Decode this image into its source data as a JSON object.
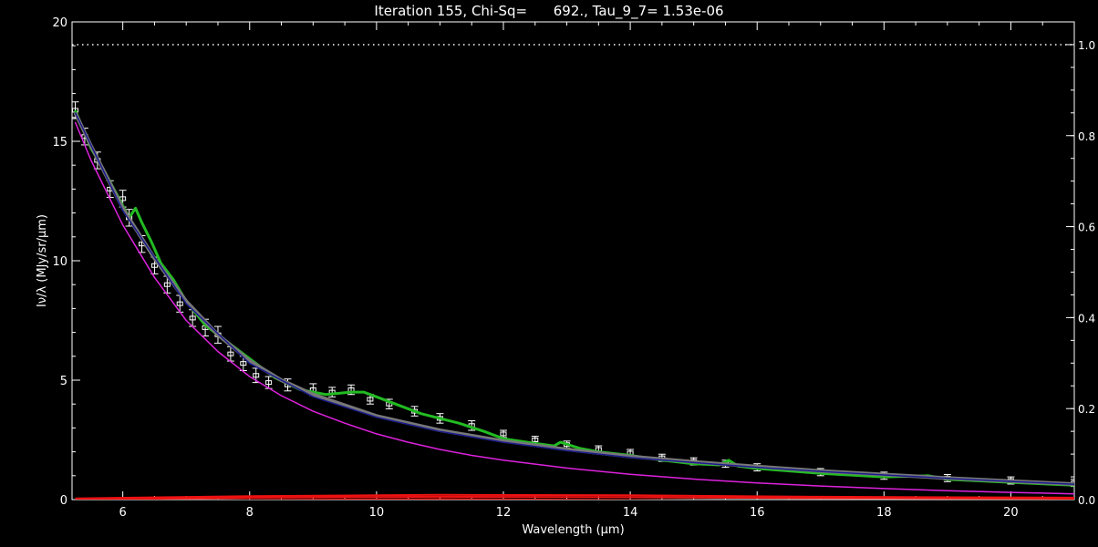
{
  "chart_data": {
    "type": "line",
    "title": "Iteration 155, Chi-Sq=      692., Tau_9_7= 1.53e-06",
    "xlabel": "Wavelength (μm)",
    "ylabel": "Iν/λ (MJy/sr/μm)",
    "xlim": [
      5.2,
      21.0
    ],
    "ylim": [
      0,
      20
    ],
    "y2lim": [
      0,
      1.05
    ],
    "xticks": [
      "6",
      "8",
      "10",
      "12",
      "14",
      "16",
      "18",
      "20"
    ],
    "yticks": [
      "0",
      "5",
      "10",
      "15",
      "20"
    ],
    "y2ticks": [
      "0.0",
      "0.2",
      "0.4",
      "0.6",
      "0.8",
      "1.0"
    ],
    "grid": false,
    "legend": "none",
    "series": [
      {
        "role": "observed",
        "color": "#ffffff",
        "style": "points-with-errorbars",
        "x": [
          5.25,
          5.4,
          5.6,
          5.8,
          6.0,
          6.1,
          6.3,
          6.5,
          6.7,
          6.9,
          7.1,
          7.3,
          7.5,
          7.7,
          7.9,
          8.1,
          8.3,
          8.6,
          9.0,
          9.3,
          9.6,
          9.9,
          10.2,
          10.6,
          11.0,
          11.5,
          12.0,
          12.5,
          13.0,
          13.5,
          14.0,
          14.5,
          15.0,
          15.5,
          16.0,
          17.0,
          18.0,
          19.0,
          20.0,
          21.0
        ],
        "y": [
          16.3,
          15.2,
          14.2,
          13.0,
          12.6,
          11.8,
          10.7,
          9.8,
          9.0,
          8.2,
          7.6,
          7.2,
          6.9,
          6.1,
          5.7,
          5.2,
          4.9,
          4.8,
          4.6,
          4.5,
          4.6,
          4.2,
          4.0,
          3.7,
          3.4,
          3.1,
          2.75,
          2.5,
          2.3,
          2.1,
          1.95,
          1.75,
          1.6,
          1.5,
          1.35,
          1.15,
          1.0,
          0.9,
          0.8,
          0.7
        ],
        "err": [
          0.35,
          0.35,
          0.35,
          0.35,
          0.35,
          0.35,
          0.35,
          0.35,
          0.35,
          0.35,
          0.35,
          0.35,
          0.35,
          0.3,
          0.3,
          0.3,
          0.25,
          0.25,
          0.25,
          0.2,
          0.2,
          0.2,
          0.2,
          0.2,
          0.2,
          0.2,
          0.15,
          0.15,
          0.15,
          0.15,
          0.15,
          0.15,
          0.15,
          0.15,
          0.15,
          0.15,
          0.15,
          0.15,
          0.15,
          0.15
        ]
      },
      {
        "role": "total model",
        "color": "#22bb22",
        "x": [
          5.25,
          5.5,
          5.7,
          5.9,
          6.1,
          6.2,
          6.3,
          6.45,
          6.6,
          6.8,
          7.0,
          7.3,
          7.6,
          8.0,
          8.4,
          8.8,
          9.2,
          9.6,
          9.8,
          10.0,
          10.3,
          10.7,
          11.0,
          11.3,
          11.7,
          12.0,
          12.5,
          12.8,
          12.9,
          13.2,
          13.5,
          14.0,
          14.5,
          15.0,
          15.4,
          15.55,
          15.7,
          16.0,
          17.0,
          18.0,
          18.7,
          19.0,
          20.0,
          21.0
        ],
        "y": [
          16.3,
          14.7,
          13.8,
          12.8,
          11.8,
          12.2,
          11.6,
          10.8,
          9.9,
          9.2,
          8.3,
          7.3,
          6.7,
          5.9,
          5.1,
          4.6,
          4.4,
          4.5,
          4.5,
          4.3,
          4.0,
          3.6,
          3.4,
          3.2,
          2.85,
          2.55,
          2.35,
          2.25,
          2.4,
          2.15,
          2.0,
          1.85,
          1.65,
          1.5,
          1.45,
          1.65,
          1.4,
          1.3,
          1.1,
          0.95,
          1.0,
          0.85,
          0.72,
          0.6
        ]
      },
      {
        "role": "continuum",
        "color": "#777777",
        "x": [
          5.25,
          5.5,
          6.0,
          6.5,
          7.0,
          7.5,
          8.0,
          8.5,
          9.0,
          9.5,
          10.0,
          11.0,
          12.0,
          13.0,
          14.0,
          15.0,
          16.0,
          17.0,
          18.0,
          19.0,
          20.0,
          21.0
        ],
        "y": [
          16.2,
          14.8,
          12.2,
          10.1,
          8.3,
          6.9,
          5.8,
          5.0,
          4.4,
          3.95,
          3.5,
          2.9,
          2.45,
          2.1,
          1.8,
          1.58,
          1.38,
          1.2,
          1.05,
          0.9,
          0.77,
          0.65
        ]
      },
      {
        "role": "continuum component",
        "color": "#1a1a8c",
        "x": [
          5.25,
          6.0,
          7.0,
          8.0,
          9.0,
          10.0,
          11.0,
          12.0,
          13.0,
          14.0,
          15.0,
          16.0,
          17.0,
          18.0,
          19.0,
          20.0,
          21.0
        ],
        "y": [
          16.2,
          12.1,
          8.2,
          5.7,
          4.3,
          3.45,
          2.85,
          2.4,
          2.05,
          1.76,
          1.55,
          1.35,
          1.18,
          1.03,
          0.89,
          0.76,
          0.64
        ]
      },
      {
        "role": "stellar",
        "color": "#dd22dd",
        "x": [
          5.25,
          5.5,
          6.0,
          6.5,
          7.0,
          7.5,
          8.0,
          8.5,
          9.0,
          9.5,
          10.0,
          10.5,
          11.0,
          11.5,
          12.0,
          13.0,
          14.0,
          15.0,
          16.0,
          17.0,
          18.0,
          19.0,
          20.0,
          21.0
        ],
        "y": [
          15.8,
          14.2,
          11.5,
          9.3,
          7.5,
          6.2,
          5.15,
          4.35,
          3.7,
          3.2,
          2.75,
          2.4,
          2.1,
          1.85,
          1.65,
          1.32,
          1.06,
          0.86,
          0.7,
          0.57,
          0.46,
          0.37,
          0.3,
          0.24
        ]
      },
      {
        "role": "features",
        "color": "#ee1111",
        "x": [
          5.25,
          8.0,
          11.0,
          14.0,
          17.0,
          21.0
        ],
        "y": [
          0.0,
          0.08,
          0.12,
          0.1,
          0.06,
          0.04
        ]
      },
      {
        "role": "features",
        "color": "#ee1111",
        "x": [
          5.25,
          8.0,
          11.0,
          14.0,
          17.0,
          21.0
        ],
        "y": [
          0.05,
          0.14,
          0.2,
          0.18,
          0.12,
          0.08
        ]
      },
      {
        "role": "features",
        "color": "#ee1111",
        "x": [
          5.25,
          8.0,
          11.0,
          14.0,
          17.0,
          21.0
        ],
        "y": [
          -0.05,
          -0.02,
          0.02,
          -0.02,
          -0.06,
          -0.1
        ]
      },
      {
        "role": "extinction",
        "color": "#ffffff",
        "style": "dotted",
        "axis": "right",
        "x": [
          5.2,
          21.0
        ],
        "y": [
          1.0,
          1.0
        ]
      }
    ]
  }
}
